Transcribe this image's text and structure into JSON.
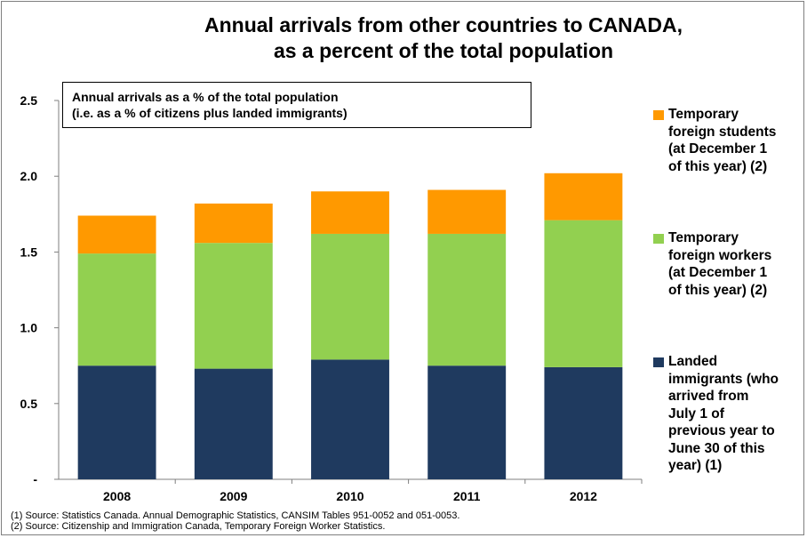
{
  "chart_data": {
    "type": "bar",
    "stacked": true,
    "title": "Annual arrivals from other countries to CANADA, as a percent of the total population",
    "title_lines": [
      "Annual arrivals from other countries to CANADA,",
      "as a percent of the total population"
    ],
    "annotation_lines": [
      "Annual arrivals as a % of the total population",
      "(i.e. as a % of citizens plus landed immigrants)"
    ],
    "categories": [
      "2008",
      "2009",
      "2010",
      "2011",
      "2012"
    ],
    "ylim": [
      0,
      2.5
    ],
    "y_ticks": [
      {
        "value": 0,
        "label": "-"
      },
      {
        "value": 0.5,
        "label": "0.5"
      },
      {
        "value": 1.0,
        "label": "1.0"
      },
      {
        "value": 1.5,
        "label": "1.5"
      },
      {
        "value": 2.0,
        "label": "2.0"
      },
      {
        "value": 2.5,
        "label": "2.5"
      }
    ],
    "grid": false,
    "legend_position": "right",
    "series": [
      {
        "name": "Landed immigrants (who arrived from July 1 of previous year to June 30 of this year) (1)",
        "color": "#1f3a5f",
        "values": [
          0.75,
          0.73,
          0.79,
          0.75,
          0.74
        ]
      },
      {
        "name": "Temporary foreign workers (at December 1 of this year) (2)",
        "color": "#92d050",
        "values": [
          0.74,
          0.83,
          0.83,
          0.87,
          0.97
        ]
      },
      {
        "name": "Temporary foreign students (at December 1 of this year) (2)",
        "color": "#ff9900",
        "values": [
          0.25,
          0.26,
          0.28,
          0.29,
          0.31
        ]
      }
    ],
    "legend": [
      {
        "lines": [
          "Temporary",
          "foreign students",
          "(at December 1",
          "of this year) (2)"
        ],
        "color": "#ff9900"
      },
      {
        "lines": [
          "Temporary",
          "foreign workers",
          "(at December 1",
          "of this year) (2)"
        ],
        "color": "#92d050"
      },
      {
        "lines": [
          "Landed",
          "immigrants (who",
          "arrived from",
          "July 1 of",
          "previous year to",
          "June 30 of this",
          "year) (1)"
        ],
        "color": "#1f3a5f"
      }
    ],
    "footnotes": [
      "(1) Source: Statistics Canada. Annual Demographic Statistics, CANSIM Tables 951-0052 and 051-0053.",
      "(2) Source: Citizenship and Immigration Canada, Temporary Foreign Worker Statistics."
    ]
  }
}
